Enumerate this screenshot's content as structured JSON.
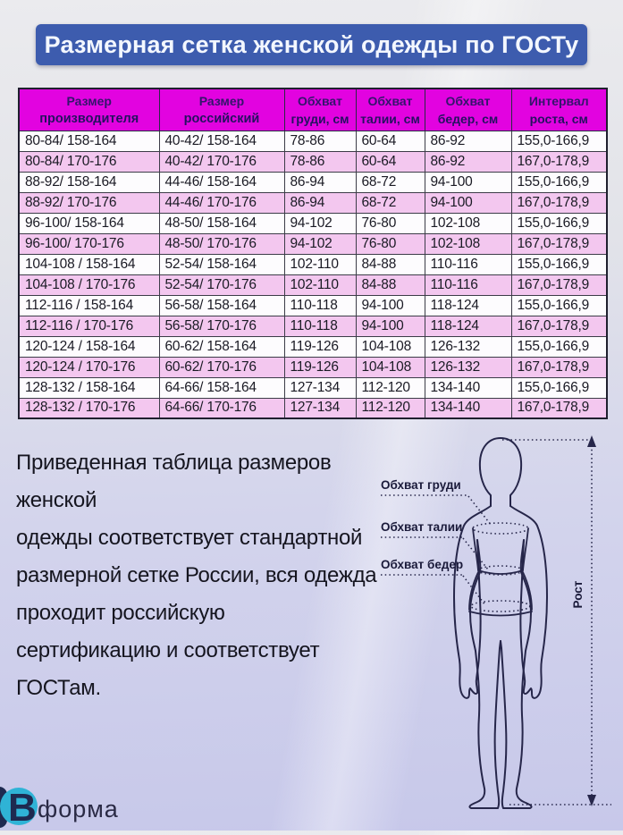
{
  "banner": {
    "title": "Размерная сетка женской одежды по ГОСТу"
  },
  "table": {
    "headers": [
      {
        "line1": "Размер",
        "line2": "производителя"
      },
      {
        "line1": "Размер",
        "line2": "российский"
      },
      {
        "line1": "Обхват",
        "line2": "груди, см"
      },
      {
        "line1": "Обхват",
        "line2": "талии, см"
      },
      {
        "line1": "Обхват",
        "line2": "бедер, см"
      },
      {
        "line1": "Интервал",
        "line2": "роста, см"
      }
    ],
    "rows": [
      [
        "80-84/ 158-164",
        "40-42/ 158-164",
        "78-86",
        "60-64",
        "86-92",
        "155,0-166,9"
      ],
      [
        "80-84/ 170-176",
        "40-42/ 170-176",
        "78-86",
        "60-64",
        "86-92",
        "167,0-178,9"
      ],
      [
        "88-92/ 158-164",
        "44-46/ 158-164",
        "86-94",
        "68-72",
        "94-100",
        "155,0-166,9"
      ],
      [
        "88-92/ 170-176",
        "44-46/ 170-176",
        "86-94",
        "68-72",
        "94-100",
        "167,0-178,9"
      ],
      [
        "96-100/ 158-164",
        "48-50/ 158-164",
        "94-102",
        "76-80",
        "102-108",
        "155,0-166,9"
      ],
      [
        "96-100/ 170-176",
        "48-50/ 170-176",
        "94-102",
        "76-80",
        "102-108",
        "167,0-178,9"
      ],
      [
        "104-108 / 158-164",
        "52-54/ 158-164",
        "102-110",
        "84-88",
        "110-116",
        "155,0-166,9"
      ],
      [
        "104-108 / 170-176",
        "52-54/ 170-176",
        "102-110",
        "84-88",
        "110-116",
        "167,0-178,9"
      ],
      [
        "112-116 / 158-164",
        "56-58/ 158-164",
        "110-118",
        "94-100",
        "118-124",
        "155,0-166,9"
      ],
      [
        "112-116 / 170-176",
        "56-58/ 170-176",
        "110-118",
        "94-100",
        "118-124",
        "167,0-178,9"
      ],
      [
        "120-124 / 158-164",
        "60-62/ 158-164",
        "119-126",
        "104-108",
        "126-132",
        "155,0-166,9"
      ],
      [
        "120-124 / 170-176",
        "60-62/ 170-176",
        "119-126",
        "104-108",
        "126-132",
        "167,0-178,9"
      ],
      [
        "128-132 / 158-164",
        "64-66/ 158-164",
        "127-134",
        "112-120",
        "134-140",
        "155,0-166,9"
      ],
      [
        "128-132 / 170-176",
        "64-66/ 170-176",
        "127-134",
        "112-120",
        "134-140",
        "167,0-178,9"
      ]
    ]
  },
  "description_lines": [
    "Приведенная таблица размеров женской",
    "одежды соответствует стандартной",
    "размерной сетке России, вся одежда",
    "проходит российскую",
    "сертификацию и соответствует ГОСТам."
  ],
  "figure": {
    "labels": {
      "chest": "Обхват груди",
      "waist": "Обхват талии",
      "hips": "Обхват бедер",
      "height": "Рост"
    }
  },
  "logo": {
    "mark": "В",
    "text": "форма"
  },
  "colors": {
    "banner_blue": "#3d5cae",
    "header_magenta": "#e203e0",
    "row_pink": "#f3c7ef",
    "row_white": "#fdfcfe",
    "logo_cyan": "#2fb3d6",
    "logo_navy": "#1e2a50"
  }
}
